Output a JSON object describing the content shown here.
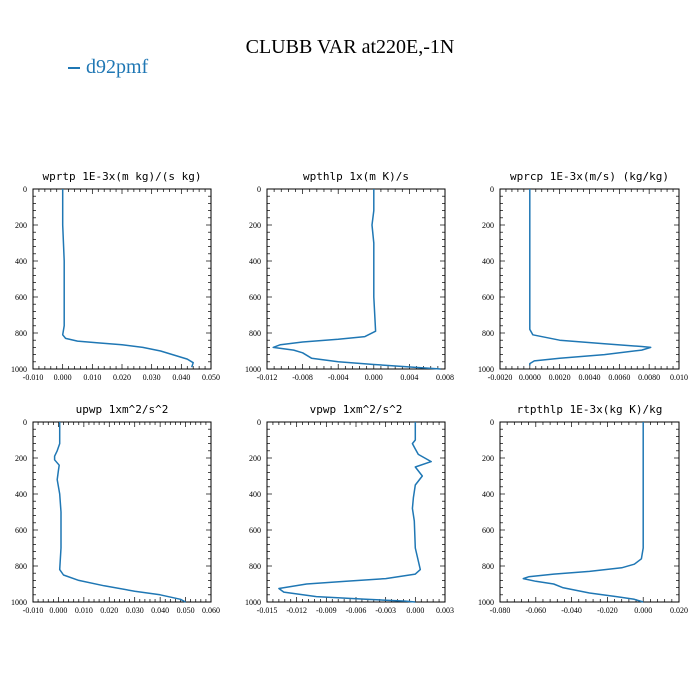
{
  "title": "CLUBB VAR at220E,-1N",
  "legend": {
    "label": "d92pmf",
    "color": "#1f77b4"
  },
  "line_color": "#1f77b4",
  "chart_data": [
    {
      "type": "line",
      "title": "wprtp  1E-3x(m kg)/(s kg)",
      "xlim": [
        -0.01,
        0.05
      ],
      "ylim": [
        1000,
        0
      ],
      "xticks": [
        "-0.010",
        "0.000",
        "0.010",
        "0.020",
        "0.030",
        "0.040",
        "0.050"
      ],
      "yticks": [
        "0",
        "200",
        "400",
        "600",
        "800",
        "1000"
      ],
      "series": [
        {
          "name": "d92pmf",
          "x": [
            0.0,
            0.0,
            0.0005,
            0.0005,
            0.0005,
            0.0,
            0.001,
            0.005,
            0.012,
            0.02,
            0.027,
            0.033,
            0.038,
            0.042,
            0.044,
            0.0435
          ],
          "y": [
            0,
            200,
            400,
            600,
            760,
            810,
            830,
            845,
            855,
            865,
            880,
            900,
            925,
            945,
            965,
            990
          ]
        }
      ]
    },
    {
      "type": "line",
      "title": "wpthlp  1x(m K)/s",
      "xlim": [
        -0.012,
        0.008
      ],
      "ylim": [
        1000,
        0
      ],
      "xticks": [
        "-0.012",
        "-0.008",
        "-0.004",
        "0.000",
        "0.004",
        "0.008"
      ],
      "yticks": [
        "0",
        "200",
        "400",
        "600",
        "800",
        "1000"
      ],
      "series": [
        {
          "name": "d92pmf",
          "x": [
            0.0,
            0.0,
            -0.0002,
            0.0,
            0.0,
            0.0,
            0.0002,
            -0.001,
            -0.004,
            -0.008,
            -0.0105,
            -0.0113,
            -0.009,
            -0.008,
            -0.007,
            -0.004,
            0.0,
            0.0045,
            0.0075
          ],
          "y": [
            0,
            120,
            200,
            300,
            400,
            600,
            790,
            820,
            835,
            850,
            865,
            880,
            895,
            910,
            940,
            960,
            975,
            990,
            1000
          ]
        }
      ]
    },
    {
      "type": "line",
      "title": "wprcp  1E-3x(m/s) (kg/kg)",
      "xlim": [
        -0.002,
        0.01
      ],
      "ylim": [
        1000,
        0
      ],
      "xticks": [
        "-0.0020",
        "0.0000",
        "0.0020",
        "0.0040",
        "0.0060",
        "0.0080",
        "0.010"
      ],
      "yticks": [
        "0",
        "200",
        "400",
        "600",
        "800",
        "1000"
      ],
      "series": [
        {
          "name": "d92pmf",
          "x": [
            0.0,
            0.0,
            0.0,
            0.0,
            0.0,
            0.0002,
            0.002,
            0.005,
            0.0075,
            0.0081,
            0.0075,
            0.005,
            0.002,
            0.0003,
            0.0,
            0.0
          ],
          "y": [
            0,
            200,
            400,
            600,
            780,
            810,
            840,
            860,
            875,
            880,
            895,
            920,
            940,
            955,
            970,
            980
          ]
        }
      ]
    },
    {
      "type": "line",
      "title": "upwp  1xm^2/s^2",
      "xlim": [
        -0.01,
        0.06
      ],
      "ylim": [
        1000,
        0
      ],
      "xticks": [
        "-0.010",
        "0.000",
        "0.010",
        "0.020",
        "0.030",
        "0.040",
        "0.050",
        "0.060"
      ],
      "yticks": [
        "0",
        "200",
        "400",
        "600",
        "800",
        "1000"
      ],
      "series": [
        {
          "name": "d92pmf",
          "x": [
            0.0005,
            0.0005,
            -0.0005,
            -0.0015,
            -0.0015,
            0.0003,
            0.0,
            -0.0005,
            0.0005,
            0.001,
            0.001,
            0.001,
            0.0005,
            0.002,
            0.008,
            0.018,
            0.03,
            0.04,
            0.048,
            0.05
          ],
          "y": [
            0,
            120,
            160,
            190,
            210,
            240,
            270,
            320,
            400,
            500,
            600,
            700,
            820,
            850,
            880,
            910,
            940,
            960,
            985,
            1000
          ]
        }
      ]
    },
    {
      "type": "line",
      "title": "vpwp  1xm^2/s^2",
      "xlim": [
        -0.015,
        0.003
      ],
      "ylim": [
        1000,
        0
      ],
      "xticks": [
        "-0.015",
        "-0.012",
        "-0.009",
        "-0.006",
        "-0.003",
        "0.000",
        "0.003"
      ],
      "yticks": [
        "0",
        "200",
        "400",
        "600",
        "800",
        "1000"
      ],
      "series": [
        {
          "name": "d92pmf",
          "x": [
            0.0,
            0.0,
            -0.0003,
            0.0,
            0.0003,
            0.0016,
            0.0,
            0.0007,
            0.0,
            -0.0002,
            -0.0003,
            -0.0001,
            0.0,
            0.0005,
            0.0,
            -0.003,
            -0.007,
            -0.011,
            -0.0138,
            -0.0133,
            -0.01,
            -0.005,
            -0.001,
            0.0
          ],
          "y": [
            0,
            100,
            120,
            150,
            180,
            220,
            250,
            300,
            350,
            420,
            480,
            550,
            700,
            820,
            845,
            870,
            885,
            900,
            925,
            945,
            970,
            985,
            995,
            1000
          ]
        }
      ]
    },
    {
      "type": "line",
      "title": "rtpthlp  1E-3x(kg K)/kg",
      "xlim": [
        -0.08,
        0.02
      ],
      "ylim": [
        1000,
        0
      ],
      "xticks": [
        "-0.080",
        "-0.060",
        "-0.040",
        "-0.020",
        "0.000",
        "0.020"
      ],
      "yticks": [
        "0",
        "200",
        "400",
        "600",
        "800",
        "1000"
      ],
      "series": [
        {
          "name": "d92pmf",
          "x": [
            0.0,
            0.0,
            0.0,
            0.0,
            -0.001,
            -0.005,
            -0.012,
            -0.03,
            -0.05,
            -0.064,
            -0.067,
            -0.06,
            -0.05,
            -0.045,
            -0.03,
            -0.015,
            -0.005,
            0.0
          ],
          "y": [
            0,
            200,
            500,
            700,
            760,
            790,
            810,
            830,
            845,
            860,
            870,
            885,
            900,
            920,
            950,
            970,
            985,
            1000
          ]
        }
      ]
    }
  ]
}
